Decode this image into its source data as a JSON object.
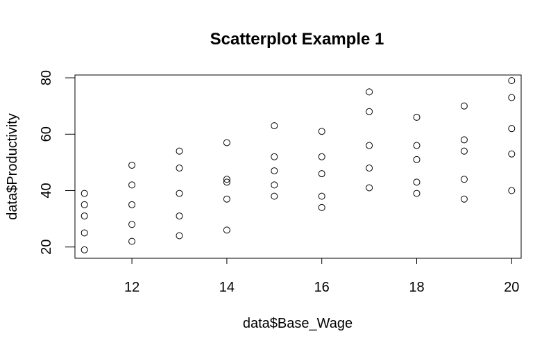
{
  "chart_data": {
    "type": "scatter",
    "title": "Scatterplot Example 1",
    "xlabel": "data$Base_Wage",
    "ylabel": "data$Productivity",
    "xlim": [
      10.8,
      20.2
    ],
    "ylim": [
      16,
      81
    ],
    "xticks": [
      12,
      14,
      16,
      18,
      20
    ],
    "yticks": [
      20,
      40,
      60,
      80
    ],
    "grid": false,
    "legend": "none",
    "x": [
      11,
      11,
      11,
      11,
      11,
      12,
      12,
      12,
      12,
      12,
      13,
      13,
      13,
      13,
      13,
      14,
      14,
      14,
      14,
      14,
      15,
      15,
      15,
      15,
      15,
      16,
      16,
      16,
      16,
      16,
      17,
      17,
      17,
      17,
      17,
      18,
      18,
      18,
      18,
      18,
      19,
      19,
      19,
      19,
      19,
      20,
      20,
      20,
      20,
      20
    ],
    "y": [
      39,
      35,
      31,
      25,
      19,
      49,
      42,
      35,
      28,
      22,
      54,
      48,
      39,
      31,
      24,
      57,
      44,
      43,
      37,
      26,
      63,
      52,
      47,
      42,
      38,
      61,
      52,
      46,
      38,
      34,
      75,
      68,
      56,
      48,
      41,
      66,
      56,
      51,
      43,
      39,
      70,
      58,
      54,
      44,
      37,
      79,
      73,
      62,
      53,
      40
    ]
  }
}
